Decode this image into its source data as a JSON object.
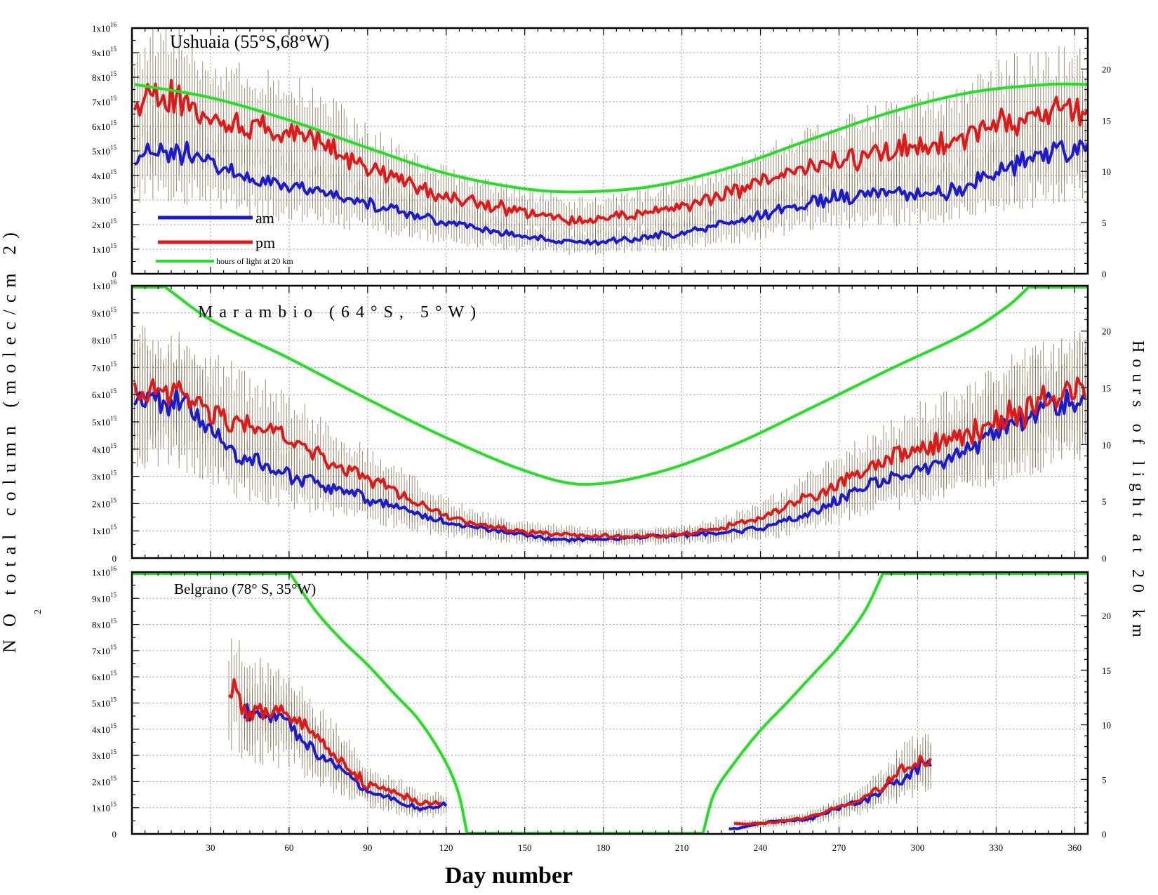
{
  "figure": {
    "ylabel": "N O total column (molec/cm 2)",
    "ylabel_main": "N",
    "ylabel_sub": "2",
    "ylabel_rest": "O total column (molec/cm 2)",
    "y2label": "Hours of light at 20 km",
    "xlabel": "Day number",
    "legend": {
      "am": "am",
      "pm": "pm",
      "light": "hours of light at 20 km"
    },
    "colors": {
      "am": "#1a1ad0",
      "pm": "#e01818",
      "light": "#22e022",
      "error": "#7a6a4a",
      "grid": "#9a9a9a"
    }
  },
  "chart_data": [
    {
      "type": "line",
      "title": "Ushuaia (55°S,68°W)",
      "xlim": [
        0,
        365
      ],
      "ylim": [
        0,
        1e+16
      ],
      "y2lim": [
        0,
        24
      ],
      "x_ticks": [
        "30",
        "60",
        "90",
        "120",
        "150",
        "180",
        "210",
        "240",
        "270",
        "300",
        "330",
        "360"
      ],
      "y_ticks": [
        "0",
        "1x10^15",
        "2x10^15",
        "3x10^15",
        "4x10^15",
        "5x10^15",
        "6x10^15",
        "7x10^15",
        "8x10^15",
        "9x10^15",
        "1x10^16"
      ],
      "y2_ticks": [
        "0",
        "5",
        "10",
        "15",
        "20"
      ],
      "series": [
        {
          "name": "am",
          "axis": "left",
          "x": [
            1,
            15,
            30,
            50,
            70,
            90,
            110,
            130,
            150,
            170,
            190,
            210,
            230,
            250,
            270,
            290,
            310,
            330,
            350,
            365
          ],
          "values": [
            4800000000000000.0,
            5000000000000000.0,
            4500000000000000.0,
            3800000000000000.0,
            3400000000000000.0,
            2900000000000000.0,
            2300000000000000.0,
            1900000000000000.0,
            1500000000000000.0,
            1300000000000000.0,
            1400000000000000.0,
            1700000000000000.0,
            2100000000000000.0,
            2700000000000000.0,
            3100000000000000.0,
            3300000000000000.0,
            3300000000000000.0,
            4100000000000000.0,
            4900000000000000.0,
            5000000000000000.0
          ]
        },
        {
          "name": "pm",
          "axis": "left",
          "x": [
            1,
            15,
            30,
            50,
            70,
            90,
            110,
            130,
            150,
            170,
            190,
            210,
            230,
            250,
            270,
            290,
            310,
            330,
            350,
            365
          ],
          "values": [
            6900000000000000.0,
            7100000000000000.0,
            6300000000000000.0,
            5900000000000000.0,
            5400000000000000.0,
            4300000000000000.0,
            3400000000000000.0,
            2900000000000000.0,
            2500000000000000.0,
            2200000000000000.0,
            2400000000000000.0,
            2700000000000000.0,
            3300000000000000.0,
            4000000000000000.0,
            4600000000000000.0,
            5000000000000000.0,
            5300000000000000.0,
            6100000000000000.0,
            6500000000000000.0,
            6500000000000000.0
          ]
        },
        {
          "name": "hours of light at 20 km",
          "axis": "right",
          "x": [
            1,
            30,
            60,
            90,
            120,
            150,
            172,
            200,
            230,
            260,
            290,
            320,
            350,
            365
          ],
          "values": [
            18.5,
            17.2,
            15.0,
            12.3,
            9.8,
            8.3,
            8.0,
            8.6,
            10.5,
            13.2,
            15.8,
            17.7,
            18.5,
            18.5
          ]
        }
      ]
    },
    {
      "type": "line",
      "title": "Marambio (64°S, 5°W)",
      "xlim": [
        0,
        365
      ],
      "ylim": [
        0,
        1e+16
      ],
      "y2lim": [
        0,
        24
      ],
      "x_ticks": [
        "30",
        "60",
        "90",
        "120",
        "150",
        "180",
        "210",
        "240",
        "270",
        "300",
        "330",
        "360"
      ],
      "y_ticks": [
        "0",
        "1x10^15",
        "2x10^15",
        "3x10^15",
        "4x10^15",
        "5x10^15",
        "6x10^15",
        "7x10^15",
        "8x10^15",
        "9x10^15",
        "1x10^16"
      ],
      "y2_ticks": [
        "0",
        "5",
        "10",
        "15",
        "20"
      ],
      "series": [
        {
          "name": "am",
          "axis": "left",
          "x": [
            1,
            20,
            30,
            40,
            60,
            80,
            100,
            120,
            140,
            160,
            180,
            200,
            220,
            240,
            260,
            280,
            300,
            320,
            340,
            364
          ],
          "values": [
            5700000000000000.0,
            5500000000000000.0,
            4600000000000000.0,
            3800000000000000.0,
            3100000000000000.0,
            2500000000000000.0,
            1900000000000000.0,
            1300000000000000.0,
            1000000000000000.0,
            700000000000000.0,
            700000000000000.0,
            800000000000000.0,
            900000000000000.0,
            1100000000000000.0,
            1700000000000000.0,
            2600000000000000.0,
            3200000000000000.0,
            4100000000000000.0,
            5100000000000000.0,
            6000000000000000.0
          ]
        },
        {
          "name": "pm",
          "axis": "left",
          "x": [
            1,
            20,
            30,
            40,
            60,
            80,
            100,
            120,
            140,
            160,
            180,
            200,
            220,
            240,
            260,
            280,
            300,
            320,
            340,
            364
          ],
          "values": [
            6000000000000000.0,
            5900000000000000.0,
            5400000000000000.0,
            5000000000000000.0,
            4300000000000000.0,
            3300000000000000.0,
            2500000000000000.0,
            1600000000000000.0,
            1100000000000000.0,
            900000000000000.0,
            800000000000000.0,
            800000000000000.0,
            1000000000000000.0,
            1500000000000000.0,
            2300000000000000.0,
            3200000000000000.0,
            4000000000000000.0,
            4600000000000000.0,
            5400000000000000.0,
            6100000000000000.0
          ]
        },
        {
          "name": "hours of light at 20 km",
          "axis": "right",
          "x": [
            12,
            30,
            60,
            90,
            120,
            150,
            172,
            200,
            230,
            260,
            290,
            320,
            335,
            343
          ],
          "values": [
            24,
            21.0,
            17.6,
            14.0,
            10.6,
            7.7,
            6.5,
            7.5,
            10.0,
            13.3,
            16.7,
            20.0,
            22.3,
            24
          ]
        }
      ]
    },
    {
      "type": "line",
      "title": "Belgrano (78° S, 35°W)",
      "xlim": [
        0,
        365
      ],
      "ylim": [
        0,
        1e+16
      ],
      "y2lim": [
        0,
        24
      ],
      "x_ticks": [
        "30",
        "60",
        "90",
        "120",
        "150",
        "180",
        "210",
        "240",
        "270",
        "300",
        "330",
        "360"
      ],
      "y_ticks": [
        "0",
        "1x10^15",
        "2x10^15",
        "3x10^15",
        "4x10^15",
        "5x10^15",
        "6x10^15",
        "7x10^15",
        "8x10^15",
        "9x10^15",
        "1x10^16"
      ],
      "y2_ticks": [
        "0",
        "5",
        "10",
        "15",
        "20"
      ],
      "series": [
        {
          "name": "am",
          "axis": "left",
          "x": [
            43,
            50,
            60,
            70,
            80,
            90,
            100,
            110,
            120,
            228,
            240,
            250,
            260,
            270,
            280,
            290,
            300,
            305
          ],
          "values": [
            4800000000000000.0,
            4500000000000000.0,
            4200000000000000.0,
            3200000000000000.0,
            2500000000000000.0,
            1700000000000000.0,
            1300000000000000.0,
            1000000000000000.0,
            1100000000000000.0,
            200000000000000.0,
            400000000000000.0,
            500000000000000.0,
            600000000000000.0,
            1000000000000000.0,
            1300000000000000.0,
            1900000000000000.0,
            2500000000000000.0,
            2800000000000000.0
          ]
        },
        {
          "name": "pm",
          "axis": "left",
          "x": [
            37,
            40,
            43,
            50,
            60,
            70,
            80,
            90,
            100,
            110,
            118,
            230,
            240,
            250,
            260,
            270,
            280,
            290,
            300,
            305
          ],
          "values": [
            5100000000000000.0,
            5600000000000000.0,
            4400000000000000.0,
            4800000000000000.0,
            4600000000000000.0,
            3600000000000000.0,
            2800000000000000.0,
            1900000000000000.0,
            1600000000000000.0,
            1200000000000000.0,
            1200000000000000.0,
            400000000000000.0,
            400000000000000.0,
            500000000000000.0,
            700000000000000.0,
            1000000000000000.0,
            1400000000000000.0,
            2100000000000000.0,
            2800000000000000.0,
            2600000000000000.0
          ]
        },
        {
          "name": "hours of light at 20 km",
          "axis": "right",
          "x": [
            60,
            70,
            80,
            90,
            100,
            110,
            120,
            125,
            128,
            218,
            222,
            230,
            240,
            250,
            260,
            270,
            280,
            287
          ],
          "values": [
            24,
            20.5,
            17.8,
            15.5,
            12.9,
            10.3,
            6.5,
            3.5,
            0,
            0,
            3.5,
            6.5,
            9.5,
            12.0,
            14.6,
            17.2,
            20.5,
            24
          ]
        }
      ]
    }
  ]
}
